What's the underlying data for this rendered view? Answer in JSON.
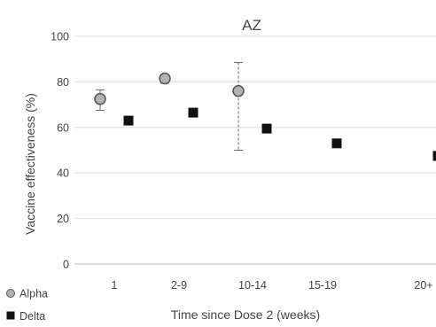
{
  "chart_data": {
    "type": "scatter",
    "title": "AZ",
    "xlabel": "Time since Dose 2 (weeks)",
    "ylabel": "Vaccine effectiveness (%)",
    "categories": [
      "1",
      "2-9",
      "10-14",
      "15-19",
      "20+"
    ],
    "ylim": [
      0,
      100
    ],
    "yticks": [
      0,
      20,
      40,
      60,
      80,
      100
    ],
    "grid": true,
    "legend_position": "bottom-left",
    "series": [
      {
        "name": "Alpha",
        "marker": "circle",
        "color": "#b3b3b3",
        "values": [
          72.5,
          81.5,
          76,
          null,
          null
        ],
        "lower": [
          67.5,
          79.5,
          50,
          null,
          null
        ],
        "upper": [
          76.5,
          83,
          88.5,
          null,
          null
        ]
      },
      {
        "name": "Delta",
        "marker": "square",
        "color": "#111111",
        "values": [
          63,
          66.5,
          59.5,
          53,
          47.5
        ],
        "lower": [
          62,
          65.5,
          58.5,
          52,
          45.5
        ],
        "upper": [
          64,
          67.5,
          60.5,
          54,
          49.5
        ]
      }
    ]
  }
}
